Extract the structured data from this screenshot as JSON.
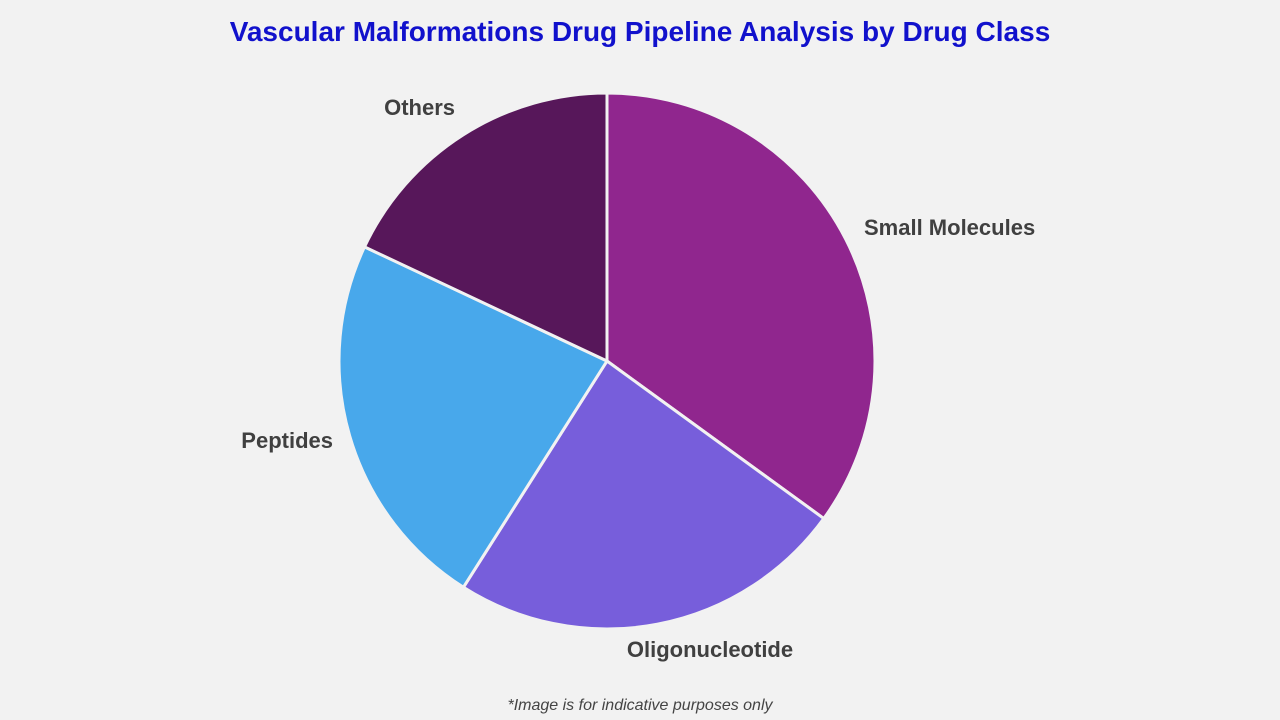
{
  "chart_data": {
    "type": "pie",
    "title": "Vascular Malformations Drug Pipeline Analysis by Drug Class",
    "categories": [
      "Small Molecules",
      "Oligonucleotide",
      "Peptides",
      "Others"
    ],
    "values": [
      35,
      24,
      23,
      18
    ],
    "colors": [
      "#90268e",
      "#775edb",
      "#48a8eb",
      "#57175a"
    ],
    "title_color": "#1111cc",
    "label_color": "#404040",
    "legend": "none"
  },
  "footnote": "*Image is for indicative purposes only"
}
